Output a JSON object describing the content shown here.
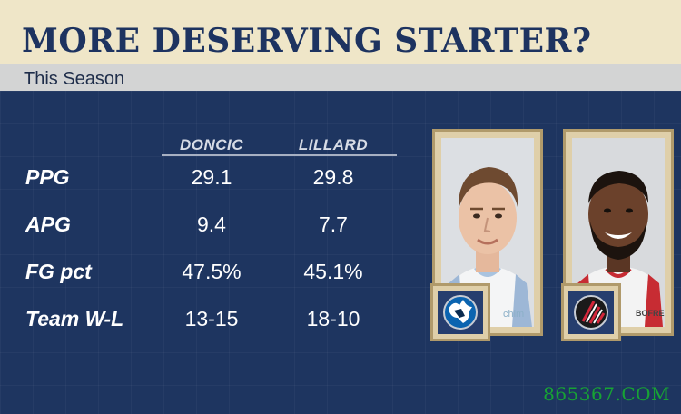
{
  "title": "MORE DESERVING STARTER?",
  "subtitle": "This Season",
  "players": [
    {
      "name": "DONCIC",
      "team_logo": "dallas-mavericks-logo",
      "jersey_text": "chim"
    },
    {
      "name": "LILLARD",
      "team_logo": "portland-trail-blazers-logo",
      "jersey_text": "BOFRE"
    }
  ],
  "stats": [
    {
      "label": "PPG",
      "values": [
        "29.1",
        "29.8"
      ]
    },
    {
      "label": "APG",
      "values": [
        "9.4",
        "7.7"
      ]
    },
    {
      "label": "FG pct",
      "values": [
        "47.5%",
        "45.1%"
      ]
    },
    {
      "label": "Team W-L",
      "values": [
        "13-15",
        "18-10"
      ]
    }
  ],
  "watermark": "865367.COM",
  "colors": {
    "background": "#1e3560",
    "title_bar": "#efe6c8",
    "title_text": "#1d3360",
    "subtitle_bar": "#d3d4d4",
    "frame": "#dfcfa9",
    "watermark": "#17a334"
  }
}
